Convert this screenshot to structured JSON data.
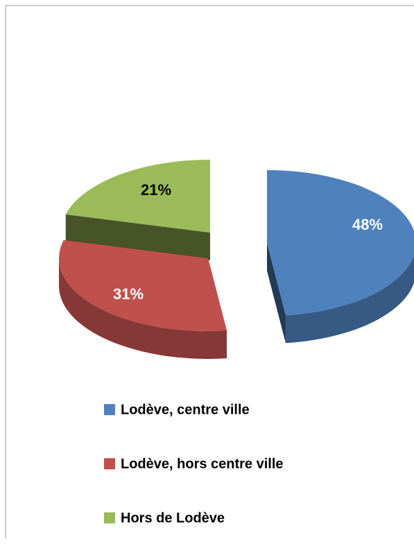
{
  "chart_data": {
    "type": "pie",
    "categories": [
      "Lodève, centre ville",
      "Lodève, hors centre ville",
      "Hors de Lodève"
    ],
    "values": [
      48,
      31,
      21
    ],
    "value_labels": [
      "48%",
      "31%",
      "21%"
    ],
    "colors": [
      "#4f81bd",
      "#c0504d",
      "#9bbb59"
    ],
    "legend": "bottom"
  }
}
